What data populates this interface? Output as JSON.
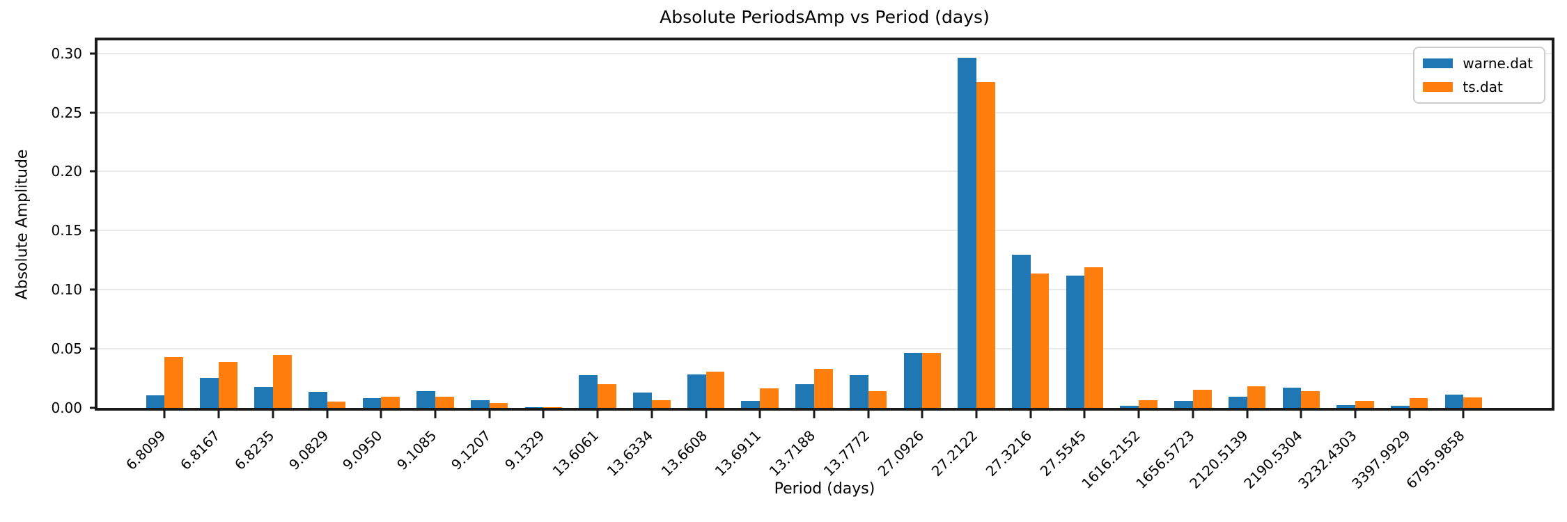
{
  "figure": {
    "background": "#ffffff",
    "grid_color": "#e9e9e9",
    "spine_color": "#1a1a1a"
  },
  "chart_data": {
    "type": "bar",
    "title": "Absolute PeriodsAmp vs Period (days)",
    "xlabel": "Period (days)",
    "ylabel": "Absolute Amplitude",
    "categories": [
      "6.8099",
      "6.8167",
      "6.8235",
      "9.0829",
      "9.0950",
      "9.1085",
      "9.1207",
      "9.1329",
      "13.6061",
      "13.6334",
      "13.6608",
      "13.6911",
      "13.7188",
      "13.7772",
      "27.0926",
      "27.2122",
      "27.3216",
      "27.5545",
      "1616.2152",
      "1656.5723",
      "2120.5139",
      "2190.5304",
      "3232.4303",
      "3397.9929",
      "6795.9858"
    ],
    "series": [
      {
        "name": "warne.dat",
        "color": "#1f77b4",
        "values": [
          0.0107,
          0.0251,
          0.0175,
          0.0134,
          0.0084,
          0.0142,
          0.0062,
          0.0005,
          0.0275,
          0.0131,
          0.0284,
          0.0057,
          0.0202,
          0.0276,
          0.0465,
          0.2964,
          0.1295,
          0.1118,
          0.002,
          0.0057,
          0.0096,
          0.0169,
          0.0023,
          0.0016,
          0.0113
        ]
      },
      {
        "name": "ts.dat",
        "color": "#ff7f0e",
        "values": [
          0.0432,
          0.0391,
          0.0449,
          0.0053,
          0.0092,
          0.0092,
          0.0043,
          0.0008,
          0.0202,
          0.0066,
          0.0304,
          0.0165,
          0.0329,
          0.0141,
          0.0465,
          0.2755,
          0.1135,
          0.1188,
          0.0063,
          0.0151,
          0.018,
          0.0143,
          0.006,
          0.008,
          0.0088
        ]
      }
    ],
    "y_ticks": [
      "0.00",
      "0.05",
      "0.10",
      "0.15",
      "0.20",
      "0.25",
      "0.30"
    ],
    "ylim": [
      0,
      0.311
    ],
    "grid": "horizontal",
    "legend_position": "upper right",
    "x_tick_rotation": 45
  }
}
